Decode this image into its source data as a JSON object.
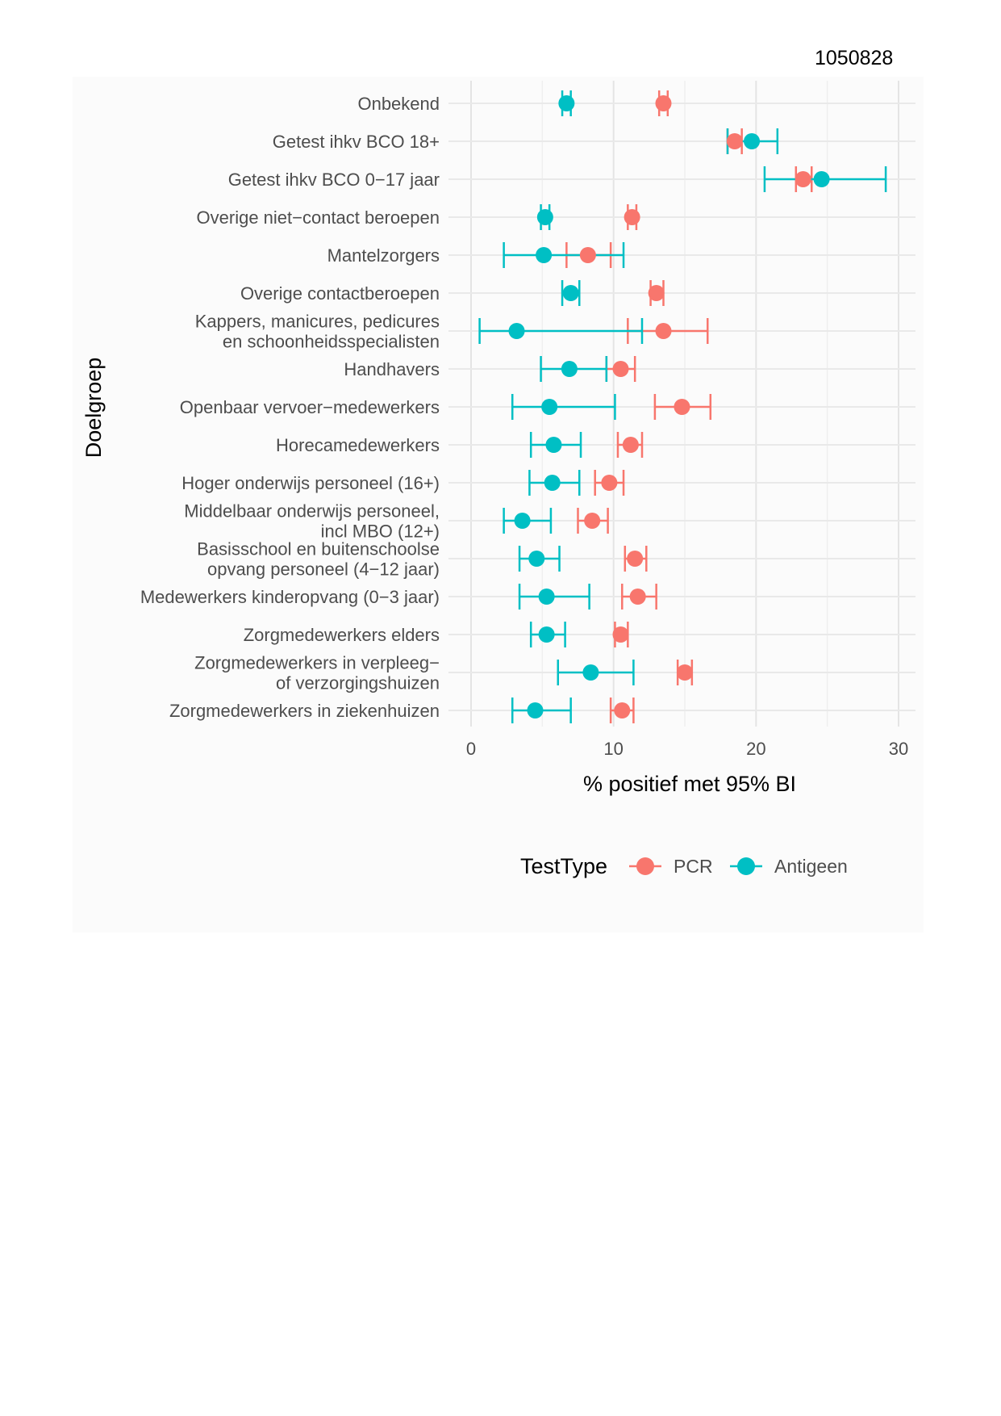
{
  "document_id": "1050828",
  "chart_data": {
    "type": "scatter",
    "subtype": "point-range (dot with 95% CI error bars)",
    "xlabel": "% positief met 95% BI",
    "ylabel": "Doelgroep",
    "xlim": [
      0,
      30
    ],
    "xticks": [
      0,
      10,
      20,
      30
    ],
    "grid": true,
    "legend": {
      "title": "TestType",
      "placement": "bottom"
    },
    "categories": [
      [
        "Onbekend"
      ],
      [
        "Getest ihkv BCO 18+"
      ],
      [
        "Getest ihkv BCO 0−17 jaar"
      ],
      [
        "Overige niet−contact beroepen"
      ],
      [
        "Mantelzorgers"
      ],
      [
        "Overige contactberoepen"
      ],
      [
        "Kappers, manicures, pedicures",
        "en schoonheidsspecialisten"
      ],
      [
        "Handhavers"
      ],
      [
        "Openbaar vervoer−medewerkers"
      ],
      [
        "Horecamedewerkers"
      ],
      [
        "Hoger onderwijs personeel (16+)"
      ],
      [
        "Middelbaar onderwijs personeel,",
        "incl MBO (12+)"
      ],
      [
        "Basisschool en buitenschoolse",
        "opvang personeel (4−12 jaar)"
      ],
      [
        "Medewerkers kinderopvang (0−3 jaar)"
      ],
      [
        "Zorgmedewerkers elders"
      ],
      [
        "Zorgmedewerkers in verpleeg−",
        "of verzorgingshuizen"
      ],
      [
        "Zorgmedewerkers in ziekenhuizen"
      ]
    ],
    "series": [
      {
        "name": "PCR",
        "color": "#F8766D",
        "values": [
          13.5,
          18.5,
          23.3,
          11.3,
          8.2,
          13.0,
          13.5,
          10.5,
          14.8,
          11.2,
          9.7,
          8.5,
          11.5,
          11.7,
          10.5,
          15.0,
          10.6
        ],
        "lower": [
          13.2,
          18.0,
          22.8,
          11.0,
          6.7,
          12.6,
          11.0,
          9.5,
          12.9,
          10.3,
          8.7,
          7.5,
          10.8,
          10.6,
          10.1,
          14.5,
          9.8
        ],
        "upper": [
          13.8,
          19.0,
          23.9,
          11.6,
          9.8,
          13.5,
          16.6,
          11.5,
          16.8,
          12.0,
          10.7,
          9.6,
          12.3,
          13.0,
          11.0,
          15.5,
          11.4
        ]
      },
      {
        "name": "Antigeen",
        "color": "#00BFC4",
        "values": [
          6.7,
          19.7,
          24.6,
          5.2,
          5.1,
          7.0,
          3.2,
          6.9,
          5.5,
          5.8,
          5.7,
          3.6,
          4.6,
          5.3,
          5.3,
          8.4,
          4.5
        ],
        "lower": [
          6.4,
          18.0,
          20.6,
          4.9,
          2.3,
          6.4,
          0.6,
          4.9,
          2.9,
          4.2,
          4.1,
          2.3,
          3.4,
          3.4,
          4.2,
          6.1,
          2.9
        ],
        "upper": [
          7.0,
          21.5,
          29.1,
          5.5,
          10.7,
          7.6,
          12.0,
          9.5,
          10.1,
          7.7,
          7.6,
          5.6,
          6.2,
          8.3,
          6.6,
          11.4,
          7.0
        ]
      }
    ]
  }
}
